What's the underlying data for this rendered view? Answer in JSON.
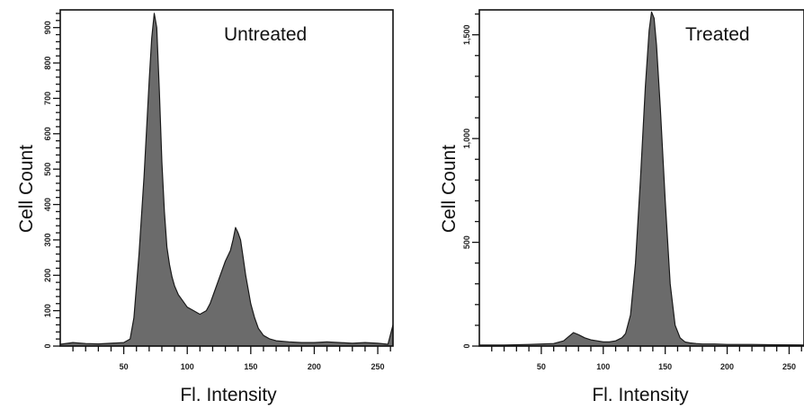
{
  "chart_data": [
    {
      "type": "area",
      "title": "Untreated",
      "xlabel": "Fl. Intensity",
      "ylabel": "Cell Count",
      "xlim": [
        0,
        262
      ],
      "ylim": [
        0,
        950
      ],
      "xticks": [
        50,
        100,
        150,
        200,
        250
      ],
      "xtick_labels": [
        "50",
        "100",
        "150",
        "200",
        "250"
      ],
      "yticks": [
        0,
        100,
        200,
        300,
        400,
        500,
        600,
        700,
        800,
        900
      ],
      "ytick_labels": [
        "0",
        "100",
        "200",
        "300",
        "400",
        "500",
        "600",
        "700",
        "800",
        "900"
      ],
      "grid": false,
      "fill_color": "#6b6b6b",
      "series": [
        {
          "x": [
            0,
            10,
            20,
            30,
            40,
            50,
            55,
            58,
            62,
            66,
            70,
            72,
            74,
            76,
            78,
            80,
            82,
            84,
            86,
            88,
            90,
            93,
            96,
            100,
            105,
            110,
            115,
            118,
            122,
            126,
            130,
            134,
            136,
            138,
            140,
            142,
            144,
            146,
            148,
            150,
            153,
            156,
            160,
            165,
            170,
            180,
            190,
            200,
            210,
            220,
            230,
            240,
            250,
            258,
            262
          ],
          "y": [
            5,
            10,
            7,
            6,
            8,
            10,
            20,
            80,
            260,
            480,
            750,
            870,
            940,
            900,
            720,
            520,
            380,
            280,
            230,
            195,
            170,
            145,
            130,
            110,
            100,
            90,
            100,
            120,
            160,
            200,
            240,
            270,
            300,
            335,
            320,
            300,
            250,
            200,
            160,
            120,
            80,
            50,
            30,
            20,
            15,
            12,
            10,
            10,
            12,
            10,
            8,
            10,
            8,
            5,
            60
          ]
        }
      ]
    },
    {
      "type": "area",
      "title": "Treated",
      "xlabel": "Fl. Intensity",
      "ylabel": "Cell Count",
      "xlim": [
        0,
        262
      ],
      "ylim": [
        0,
        1620
      ],
      "xticks": [
        50,
        100,
        150,
        200,
        250
      ],
      "xtick_labels": [
        "50",
        "100",
        "150",
        "200",
        "250"
      ],
      "yticks": [
        0,
        500,
        1000,
        1500
      ],
      "ytick_labels": [
        "0",
        "500",
        "1,000",
        "1,500"
      ],
      "grid": false,
      "fill_color": "#6b6b6b",
      "series": [
        {
          "x": [
            0,
            20,
            40,
            60,
            68,
            72,
            76,
            80,
            85,
            90,
            95,
            100,
            105,
            110,
            115,
            118,
            122,
            126,
            130,
            134,
            137,
            139,
            141,
            143,
            146,
            150,
            154,
            158,
            162,
            166,
            170,
            175,
            180,
            190,
            200,
            220,
            240,
            262
          ],
          "y": [
            5,
            5,
            8,
            12,
            25,
            45,
            65,
            55,
            40,
            30,
            25,
            20,
            20,
            25,
            40,
            60,
            150,
            400,
            800,
            1250,
            1520,
            1610,
            1580,
            1450,
            1150,
            700,
            300,
            100,
            40,
            20,
            15,
            12,
            10,
            10,
            8,
            8,
            6,
            5
          ]
        }
      ]
    }
  ]
}
